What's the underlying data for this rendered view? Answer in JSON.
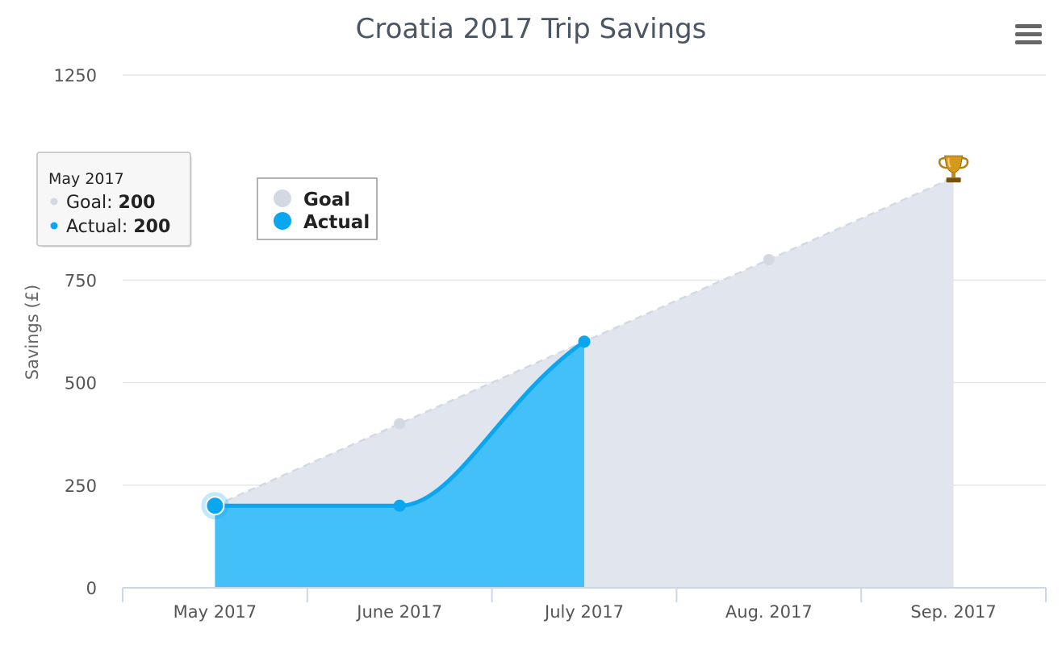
{
  "chart_data": {
    "type": "area",
    "title": "Croatia 2017 Trip Savings",
    "ylabel": "Savings (£)",
    "categories": [
      "May 2017",
      "June 2017",
      "July 2017",
      "Aug. 2017",
      "Sep. 2017"
    ],
    "ylim": [
      0,
      1250
    ],
    "yticks": [
      0,
      250,
      500,
      750,
      1250
    ],
    "grid": true,
    "legend_position": "top-left",
    "series": [
      {
        "name": "Goal",
        "values": [
          200,
          400,
          600,
          800,
          1000
        ],
        "color": "#d3d9e3",
        "fill": "#e1e5ee",
        "style": "dashed"
      },
      {
        "name": "Actual",
        "values": [
          200,
          200,
          600,
          null,
          null
        ],
        "color": "#0aa6f0",
        "fill": "#44c0f8",
        "style": "solid"
      }
    ],
    "goal_marker_icon": "trophy-icon",
    "tooltip": {
      "header": "May 2017",
      "rows": [
        {
          "label": "Goal",
          "value": "200",
          "color": "#d3d9e3"
        },
        {
          "label": "Actual",
          "value": "200",
          "color": "#0aa6f0"
        }
      ]
    }
  },
  "menu_icon": "hamburger-menu-icon"
}
